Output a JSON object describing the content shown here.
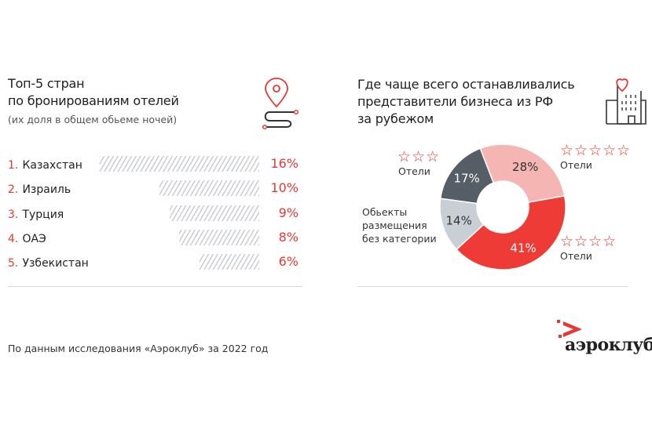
{
  "left": {
    "title_line1": "Топ-5 стран",
    "title_line2": "по бронированиям отелей",
    "subtitle": "(их доля в общем обьеме ночей)",
    "icon": "route-pin-icon"
  },
  "right": {
    "title_line1": "Где чаще всего останавливались",
    "title_line2": "представители бизнеса из РФ",
    "title_line3": "за рубежом",
    "icon": "hotel-heart-icon"
  },
  "footer": {
    "source": "По данным исследования «Аэроклуб» за 2022 год",
    "logo_text": "аэроклуб"
  },
  "colors": {
    "accent": "#e53935",
    "pink": "#f5b5b3",
    "dark": "#555e66",
    "light": "#c8d0d6"
  },
  "chart_data": [
    {
      "type": "bar",
      "orientation": "horizontal",
      "categories": [
        "Казахстан",
        "Израиль",
        "Турция",
        "ОАЭ",
        "Узбекистан"
      ],
      "ranks": [
        "1.",
        "2.",
        "3.",
        "4.",
        "5."
      ],
      "values": [
        16,
        10,
        9,
        8,
        6
      ],
      "labels": [
        "16%",
        "10%",
        "9%",
        "8%",
        "6%"
      ]
    },
    {
      "type": "pie",
      "donut": true,
      "slices": [
        {
          "label": "Отели",
          "stars": 5,
          "value": 28,
          "text": "28%",
          "color": "#f5b5b3"
        },
        {
          "label": "Отели",
          "stars": 4,
          "value": 41,
          "text": "41%",
          "color": "#ef3b36"
        },
        {
          "label": "Объекты размещения без категории",
          "label_lines": [
            "Обьекты",
            "размещения",
            "без категории"
          ],
          "value": 14,
          "text": "14%",
          "color": "#c8d0d6"
        },
        {
          "label": "Отели",
          "stars": 3,
          "value": 17,
          "text": "17%",
          "color": "#555e66"
        }
      ]
    }
  ]
}
